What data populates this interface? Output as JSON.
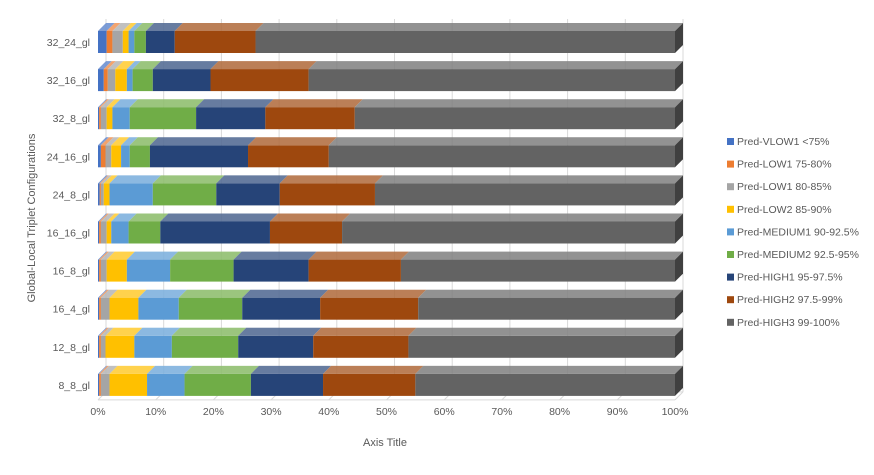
{
  "chart_data": {
    "type": "bar",
    "orientation": "horizontal",
    "stacked": "percent",
    "three_d": true,
    "title": "",
    "xlabel": "Axis Title",
    "ylabel": "Global-Local Triplet Configurations",
    "xlim": [
      0,
      100
    ],
    "x_ticks": [
      "0%",
      "10%",
      "20%",
      "30%",
      "40%",
      "50%",
      "60%",
      "70%",
      "80%",
      "90%",
      "100%"
    ],
    "grid": true,
    "legend_position": "right",
    "categories": [
      "32_24_gl",
      "32_16_gl",
      "32_8_gl",
      "24_16_gl",
      "24_8_gl",
      "16_16_gl",
      "16_8_gl",
      "16_4_gl",
      "12_8_gl",
      "8_8_gl"
    ],
    "series": [
      {
        "name": "Pred-VLOW1 <75%",
        "color": "#4472C4",
        "values": [
          1.5,
          1.0,
          0.2,
          0.5,
          0.3,
          0.2,
          0.2,
          0.2,
          0.2,
          0.2
        ]
      },
      {
        "name": "Pred-LOW1 75-80%",
        "color": "#ED7D31",
        "values": [
          1.0,
          0.7,
          0.3,
          0.8,
          0.2,
          0.3,
          0.3,
          0.3,
          0.3,
          0.3
        ]
      },
      {
        "name": "Pred-LOW1 80-85%",
        "color": "#A5A5A5",
        "values": [
          1.8,
          1.3,
          1.0,
          1.0,
          0.5,
          1.0,
          1.0,
          1.5,
          0.8,
          1.5
        ]
      },
      {
        "name": "Pred-LOW2 85-90%",
        "color": "#FFC000",
        "values": [
          1.0,
          2.0,
          1.0,
          1.7,
          1.0,
          0.8,
          3.5,
          5.0,
          5.0,
          6.5
        ]
      },
      {
        "name": "Pred-MEDIUM1 90-92.5%",
        "color": "#5B9BD5",
        "values": [
          1.0,
          1.0,
          3.0,
          1.5,
          7.5,
          3.0,
          7.5,
          7.0,
          6.5,
          6.5
        ]
      },
      {
        "name": "Pred-MEDIUM2 92.5-95%",
        "color": "#70AD47",
        "values": [
          2.0,
          3.5,
          11.5,
          3.5,
          11.0,
          5.5,
          11.0,
          11.0,
          11.5,
          11.5
        ]
      },
      {
        "name": "Pred-HIGH1 95-97.5%",
        "color": "#264478",
        "values": [
          5.0,
          10.0,
          12.0,
          17.0,
          11.0,
          19.0,
          13.0,
          13.5,
          13.0,
          12.5
        ]
      },
      {
        "name": "Pred-HIGH2 97.5-99%",
        "color": "#9E480E",
        "values": [
          14.0,
          17.0,
          15.5,
          14.0,
          16.5,
          12.5,
          16.0,
          17.0,
          16.5,
          16.0
        ]
      },
      {
        "name": "Pred-HIGH3 99-100%",
        "color": "#636363",
        "values": [
          72.7,
          63.5,
          55.5,
          60.0,
          52.0,
          57.7,
          47.5,
          44.5,
          46.2,
          45.0
        ]
      }
    ]
  }
}
